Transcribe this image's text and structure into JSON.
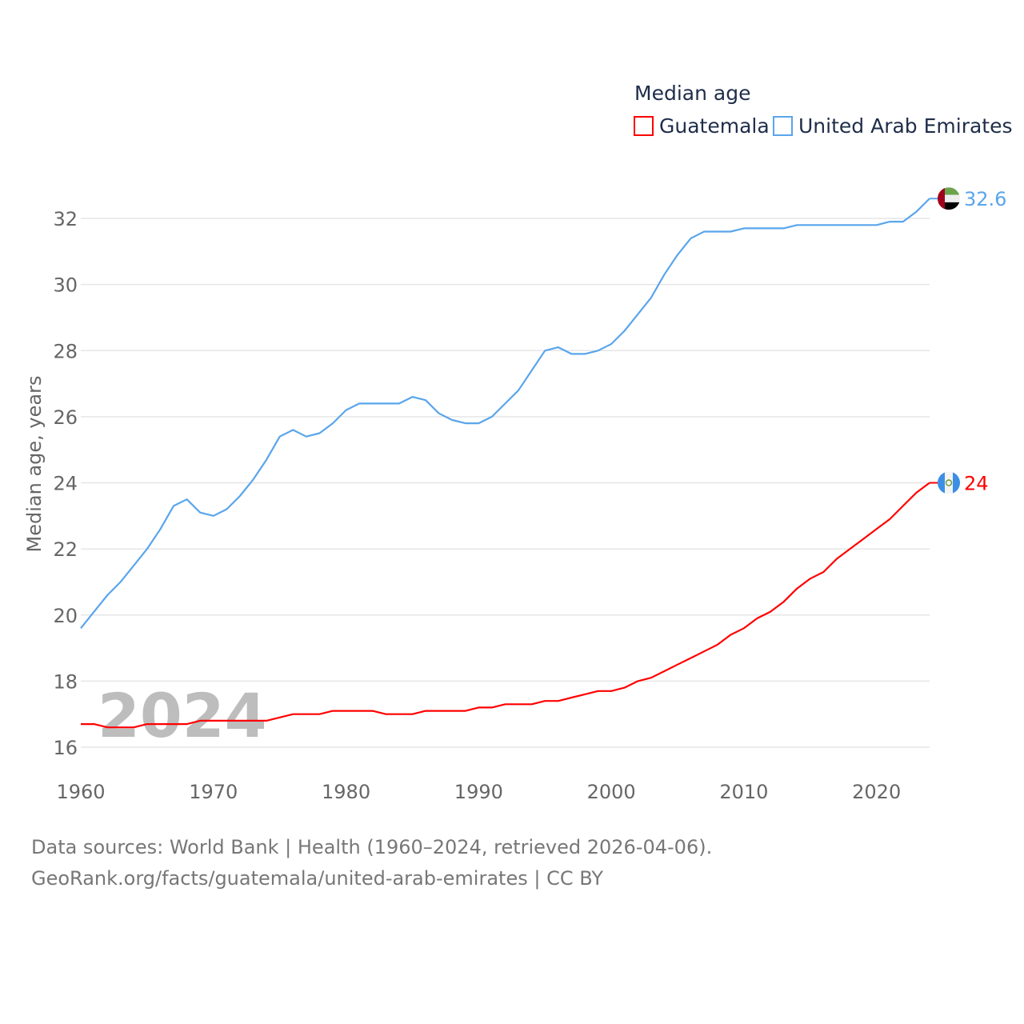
{
  "chart_data": {
    "type": "line",
    "title": "Median age",
    "xlabel": "",
    "ylabel": "Median age, years",
    "xlim": [
      1960,
      2024
    ],
    "ylim": [
      15.6,
      32.8
    ],
    "x_ticks": [
      1960,
      1970,
      1980,
      1990,
      2000,
      2010,
      2020
    ],
    "y_ticks": [
      16,
      18,
      20,
      22,
      24,
      26,
      28,
      30,
      32
    ],
    "grid": true,
    "legend_position": "top-right",
    "year_watermark": "2024",
    "x": [
      1960,
      1961,
      1962,
      1963,
      1964,
      1965,
      1966,
      1967,
      1968,
      1969,
      1970,
      1971,
      1972,
      1973,
      1974,
      1975,
      1976,
      1977,
      1978,
      1979,
      1980,
      1981,
      1982,
      1983,
      1984,
      1985,
      1986,
      1987,
      1988,
      1989,
      1990,
      1991,
      1992,
      1993,
      1994,
      1995,
      1996,
      1997,
      1998,
      1999,
      2000,
      2001,
      2002,
      2003,
      2004,
      2005,
      2006,
      2007,
      2008,
      2009,
      2010,
      2011,
      2012,
      2013,
      2014,
      2015,
      2016,
      2017,
      2018,
      2019,
      2020,
      2021,
      2022,
      2023,
      2024
    ],
    "series": [
      {
        "name": "Guatemala",
        "color": "#ff0000",
        "end_label": "24",
        "flag": "guatemala-flag",
        "values": [
          16.7,
          16.7,
          16.6,
          16.6,
          16.6,
          16.7,
          16.7,
          16.7,
          16.7,
          16.8,
          16.8,
          16.8,
          16.8,
          16.8,
          16.8,
          16.9,
          17.0,
          17.0,
          17.0,
          17.1,
          17.1,
          17.1,
          17.1,
          17.0,
          17.0,
          17.0,
          17.1,
          17.1,
          17.1,
          17.1,
          17.2,
          17.2,
          17.3,
          17.3,
          17.3,
          17.4,
          17.4,
          17.5,
          17.6,
          17.7,
          17.7,
          17.8,
          18.0,
          18.1,
          18.3,
          18.5,
          18.7,
          18.9,
          19.1,
          19.4,
          19.6,
          19.9,
          20.1,
          20.4,
          20.8,
          21.1,
          21.3,
          21.7,
          22.0,
          22.3,
          22.6,
          22.9,
          23.3,
          23.7,
          24.0
        ]
      },
      {
        "name": "United Arab Emirates",
        "color": "#5aa5ec",
        "end_label": "32.6",
        "flag": "uae-flag",
        "values": [
          19.6,
          20.1,
          20.6,
          21.0,
          21.5,
          22.0,
          22.6,
          23.3,
          23.5,
          23.1,
          23.0,
          23.2,
          23.6,
          24.1,
          24.7,
          25.4,
          25.6,
          25.4,
          25.5,
          25.8,
          26.2,
          26.4,
          26.4,
          26.4,
          26.4,
          26.6,
          26.5,
          26.1,
          25.9,
          25.8,
          25.8,
          26.0,
          26.4,
          26.8,
          27.4,
          28.0,
          28.1,
          27.9,
          27.9,
          28.0,
          28.2,
          28.6,
          29.1,
          29.6,
          30.3,
          30.9,
          31.4,
          31.6,
          31.6,
          31.6,
          31.7,
          31.7,
          31.7,
          31.7,
          31.8,
          31.8,
          31.8,
          31.8,
          31.8,
          31.8,
          31.8,
          31.9,
          31.9,
          32.2,
          32.6
        ]
      }
    ]
  },
  "footer": {
    "line1": "Data sources: World Bank | Health (1960–2024, retrieved 2026-04-06).",
    "line2": "GeoRank.org/facts/guatemala/united-arab-emirates | CC BY"
  }
}
